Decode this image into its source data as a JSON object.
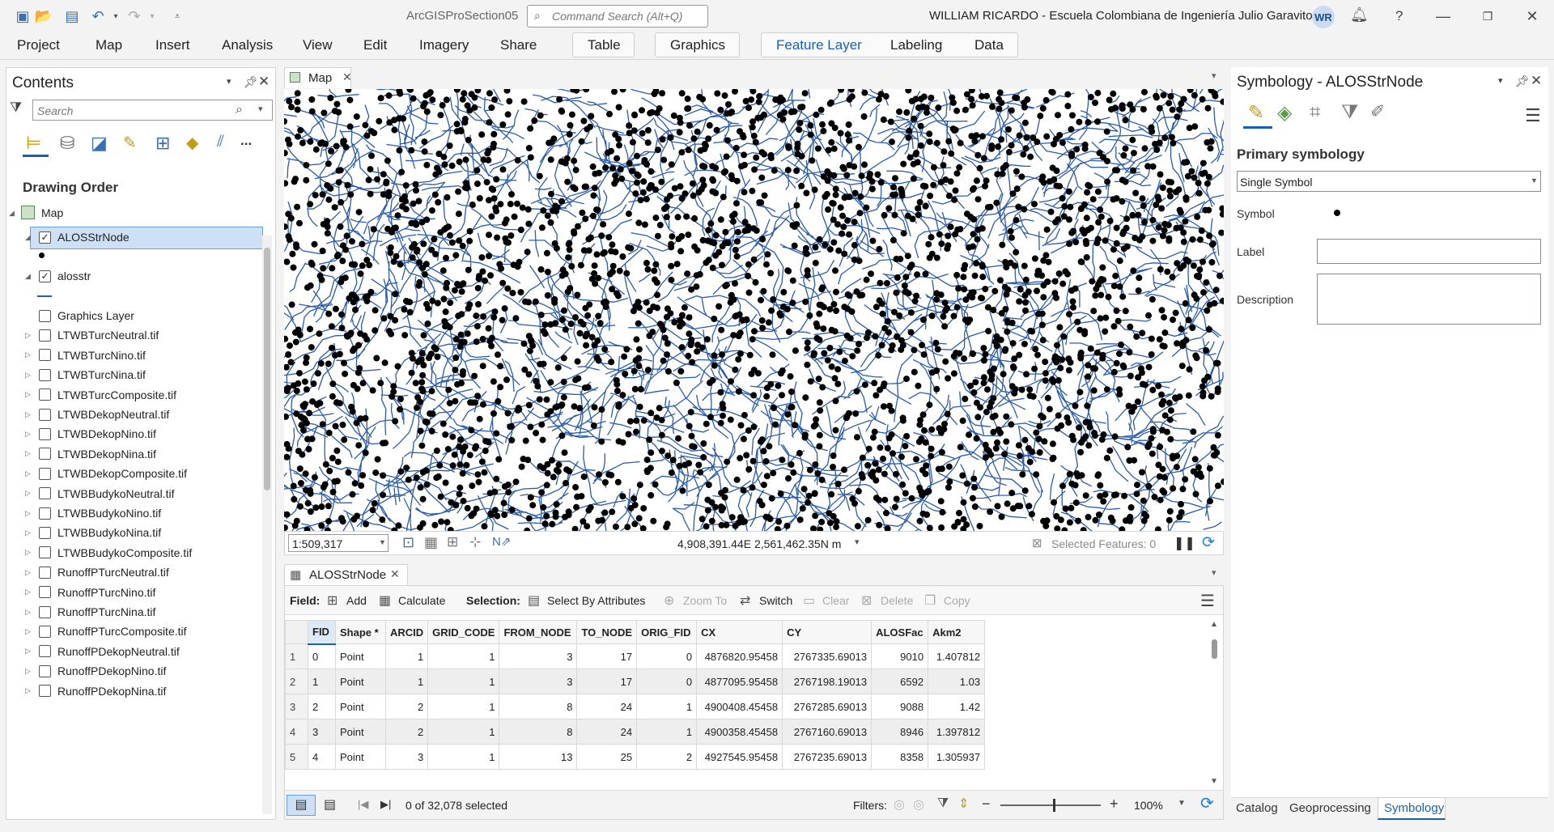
{
  "app": {
    "title": "ArcGISProSection05",
    "command_search_placeholder": "Command Search (Alt+Q)",
    "user": "WILLIAM RICARDO  - Escuela Colombiana de Ingeniería Julio Garavito",
    "user_initials": "WR",
    "help": "?"
  },
  "ribbon": {
    "tabs": [
      "Project",
      "Map",
      "Insert",
      "Analysis",
      "View",
      "Edit",
      "Imagery",
      "Share",
      "Table",
      "Graphics",
      "Feature Layer",
      "Labeling",
      "Data"
    ]
  },
  "contents": {
    "title": "Contents",
    "search_placeholder": "Search",
    "more": "...",
    "section_title": "Drawing Order",
    "map_name": "Map",
    "layers": [
      {
        "name": "ALOSStrNode",
        "checked": true
      },
      {
        "name": "alosstr",
        "checked": true
      },
      {
        "name": "Graphics Layer",
        "checked": false
      },
      {
        "name": "LTWBTurcNeutral.tif",
        "checked": false
      },
      {
        "name": "LTWBTurcNino.tif",
        "checked": false
      },
      {
        "name": "LTWBTurcNina.tif",
        "checked": false
      },
      {
        "name": "LTWBTurcComposite.tif",
        "checked": false
      },
      {
        "name": "LTWBDekopNeutral.tif",
        "checked": false
      },
      {
        "name": "LTWBDekopNino.tif",
        "checked": false
      },
      {
        "name": "LTWBDekopNina.tif",
        "checked": false
      },
      {
        "name": "LTWBDekopComposite.tif",
        "checked": false
      },
      {
        "name": "LTWBBudykoNeutral.tif",
        "checked": false
      },
      {
        "name": "LTWBBudykoNino.tif",
        "checked": false
      },
      {
        "name": "LTWBBudykoNina.tif",
        "checked": false
      },
      {
        "name": "LTWBBudykoComposite.tif",
        "checked": false
      },
      {
        "name": "RunoffPTurcNeutral.tif",
        "checked": false
      },
      {
        "name": "RunoffPTurcNino.tif",
        "checked": false
      },
      {
        "name": "RunoffPTurcNina.tif",
        "checked": false
      },
      {
        "name": "RunoffPTurcComposite.tif",
        "checked": false
      },
      {
        "name": "RunoffPDekopNeutral.tif",
        "checked": false
      },
      {
        "name": "RunoffPDekopNino.tif",
        "checked": false
      },
      {
        "name": "RunoffPDekopNina.tif",
        "checked": false
      }
    ]
  },
  "map_view": {
    "tab_label": "Map",
    "scale": "1:509,317",
    "coordinates": "4,908,391.44E 2,561,462.35N m",
    "selected_features": "Selected Features: 0",
    "colors": {
      "stream": "#2a5ca8",
      "node": "#000000"
    }
  },
  "table_view": {
    "tab_label": "ALOSStrNode",
    "toolbar": {
      "field_label": "Field:",
      "add": "Add",
      "calculate": "Calculate",
      "selection_label": "Selection:",
      "select_by_attributes": "Select By Attributes",
      "zoom_to": "Zoom To",
      "switch": "Switch",
      "clear": "Clear",
      "delete": "Delete",
      "copy": "Copy"
    },
    "columns": [
      "FID",
      "Shape *",
      "ARCID",
      "GRID_CODE",
      "FROM_NODE",
      "TO_NODE",
      "ORIG_FID",
      "CX",
      "CY",
      "ALOSFac",
      "Akm2"
    ],
    "rows": [
      [
        "1",
        "0",
        "Point",
        "1",
        "1",
        "3",
        "17",
        "0",
        "4876820.95458",
        "2767335.69013",
        "9010",
        "1.407812"
      ],
      [
        "2",
        "1",
        "Point",
        "1",
        "1",
        "3",
        "17",
        "0",
        "4877095.95458",
        "2767198.19013",
        "6592",
        "1.03"
      ],
      [
        "3",
        "2",
        "Point",
        "2",
        "1",
        "8",
        "24",
        "1",
        "4900408.45458",
        "2767285.69013",
        "9088",
        "1.42"
      ],
      [
        "4",
        "3",
        "Point",
        "2",
        "1",
        "8",
        "24",
        "1",
        "4900358.45458",
        "2767160.69013",
        "8946",
        "1.397812"
      ],
      [
        "5",
        "4",
        "Point",
        "3",
        "1",
        "13",
        "25",
        "2",
        "4927545.95458",
        "2767235.69013",
        "8358",
        "1.305937"
      ]
    ],
    "selected_count": "0 of 32,078 selected",
    "filters_label": "Filters:",
    "zoom": "100%"
  },
  "symbology": {
    "title": "Symbology - ALOSStrNode",
    "primary_label": "Primary symbology",
    "primary_value": "Single Symbol",
    "symbol_label": "Symbol",
    "label_label": "Label",
    "description_label": "Description"
  },
  "bottom_tabs": [
    "Catalog",
    "Geoprocessing",
    "Symbology"
  ]
}
